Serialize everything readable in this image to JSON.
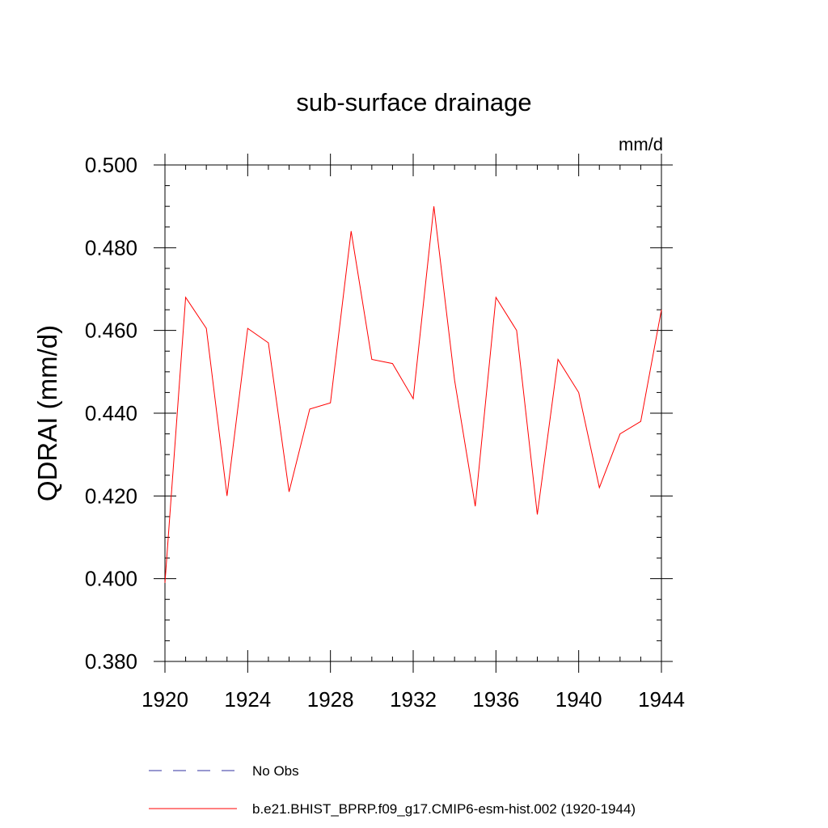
{
  "chart_data": {
    "type": "line",
    "title": "sub-surface drainage",
    "units_label": "mm/d",
    "ylabel": "QDRAI  (mm/d)",
    "xlabel": "",
    "xlim": [
      1920,
      1944
    ],
    "ylim": [
      0.38,
      0.5
    ],
    "x_ticks": [
      1920,
      1924,
      1928,
      1932,
      1936,
      1940,
      1944
    ],
    "x_tick_labels": [
      "1920",
      "1924",
      "1928",
      "1932",
      "1936",
      "1940",
      "1944"
    ],
    "y_ticks": [
      0.38,
      0.4,
      0.42,
      0.44,
      0.46,
      0.48,
      0.5
    ],
    "y_tick_labels": [
      "0.380",
      "0.400",
      "0.420",
      "0.440",
      "0.460",
      "0.480",
      "0.500"
    ],
    "x_minor_step": 1,
    "y_minor_step": 0.005,
    "grid": false,
    "legend_position": "bottom",
    "series": [
      {
        "name": "b.e21.BHIST_BPRP.f09_g17.CMIP6-esm-hist.002 (1920-1944)",
        "color": "#ff0000",
        "dash": "solid",
        "x": [
          1920,
          1921,
          1922,
          1923,
          1924,
          1925,
          1926,
          1927,
          1928,
          1929,
          1930,
          1931,
          1932,
          1933,
          1934,
          1935,
          1936,
          1937,
          1938,
          1939,
          1940,
          1941,
          1942,
          1943,
          1944
        ],
        "values": [
          0.399,
          0.468,
          0.4605,
          0.42,
          0.4605,
          0.457,
          0.421,
          0.441,
          0.4425,
          0.484,
          0.453,
          0.452,
          0.4435,
          0.49,
          0.448,
          0.4175,
          0.468,
          0.46,
          0.4155,
          0.453,
          0.445,
          0.422,
          0.435,
          0.438,
          0.465
        ]
      }
    ],
    "legend": [
      {
        "label": "No Obs",
        "color": "#3030a0",
        "dash": "dashed"
      },
      {
        "label": "b.e21.BHIST_BPRP.f09_g17.CMIP6-esm-hist.002 (1920-1944)",
        "color": "#ff0000",
        "dash": "solid"
      }
    ]
  }
}
